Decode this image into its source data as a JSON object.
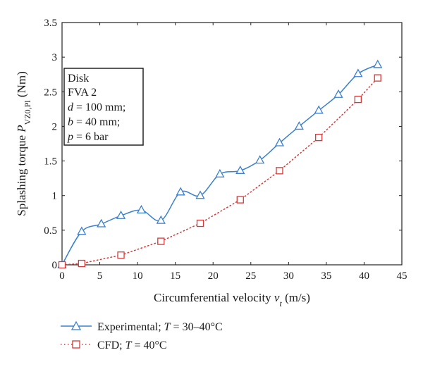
{
  "chart_data": {
    "type": "line",
    "xlabel": {
      "main": "Circumferential velocity ",
      "var": "v",
      "sub": "t",
      "unit": " (m/s)"
    },
    "ylabel": {
      "main": "Splashing torque ",
      "var": "P",
      "sub": "VZ0,Pl",
      "unit": " (Nm)"
    },
    "xlim": [
      0,
      45
    ],
    "ylim": [
      0,
      3.5
    ],
    "xticks": [
      "0",
      "5",
      "10",
      "15",
      "20",
      "25",
      "30",
      "35",
      "40",
      "45"
    ],
    "yticks": [
      "0",
      "0.5",
      "1",
      "1.5",
      "2",
      "2.5",
      "3",
      "3.5"
    ],
    "grid": false,
    "legend_position": "below",
    "info_box": [
      {
        "label": "Disk"
      },
      {
        "label": "FVA 2"
      },
      {
        "var": "d",
        "text": " = 100 mm;"
      },
      {
        "var": "b",
        "text": " = 40 mm;"
      },
      {
        "var": "p",
        "text": " = 6 bar"
      }
    ],
    "series": [
      {
        "name": "Experimental; ",
        "name_var": "T",
        "name_rest": " = 30–40°C",
        "color": "#3a7fd0",
        "marker": "triangle",
        "line": "solid-smooth",
        "x": [
          0,
          2.6,
          5.2,
          7.8,
          10.5,
          13.1,
          15.7,
          18.3,
          20.9,
          23.6,
          26.2,
          28.8,
          31.4,
          34.0,
          36.6,
          39.2,
          41.8
        ],
        "y": [
          0.0,
          0.48,
          0.59,
          0.71,
          0.79,
          0.64,
          1.05,
          1.0,
          1.31,
          1.36,
          1.51,
          1.76,
          2.0,
          2.23,
          2.46,
          2.76,
          2.89
        ]
      },
      {
        "name": "CFD; ",
        "name_var": "T",
        "name_rest": " = 40°C",
        "color": "#d43a3a",
        "marker": "square",
        "line": "dotted",
        "x": [
          0,
          2.6,
          7.8,
          13.1,
          18.3,
          23.6,
          28.8,
          34.0,
          39.2,
          41.8
        ],
        "y": [
          0.0,
          0.02,
          0.14,
          0.34,
          0.6,
          0.94,
          1.36,
          1.84,
          2.39,
          2.7
        ]
      }
    ]
  }
}
